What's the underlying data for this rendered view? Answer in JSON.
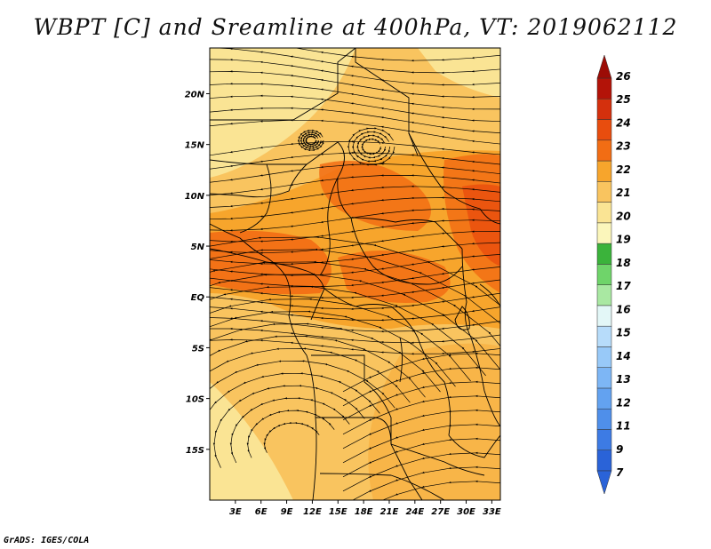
{
  "title": "WBPT [C] and Sreamline at 400hPa, VT: 2019062112",
  "credit": "GrADS: IGES/COLA",
  "map": {
    "lon_range": [
      0,
      34
    ],
    "lat_range": [
      -20,
      24.5
    ],
    "lon_ticks": [
      {
        "value": 3,
        "label": "3E"
      },
      {
        "value": 6,
        "label": "6E"
      },
      {
        "value": 9,
        "label": "9E"
      },
      {
        "value": 12,
        "label": "12E"
      },
      {
        "value": 15,
        "label": "15E"
      },
      {
        "value": 18,
        "label": "18E"
      },
      {
        "value": 21,
        "label": "21E"
      },
      {
        "value": 24,
        "label": "24E"
      },
      {
        "value": 27,
        "label": "27E"
      },
      {
        "value": 30,
        "label": "30E"
      },
      {
        "value": 33,
        "label": "33E"
      }
    ],
    "lat_ticks": [
      {
        "value": 20,
        "label": "20N"
      },
      {
        "value": 15,
        "label": "15N"
      },
      {
        "value": 10,
        "label": "10N"
      },
      {
        "value": 5,
        "label": "5N"
      },
      {
        "value": 0,
        "label": "EQ"
      },
      {
        "value": -5,
        "label": "5S"
      },
      {
        "value": -10,
        "label": "10S"
      },
      {
        "value": -15,
        "label": "15S"
      }
    ],
    "field": "wet-bulb potential temperature",
    "field_units": "C",
    "level": "400hPa",
    "dominant_range_c": [
      20,
      23
    ]
  },
  "colorbar": {
    "labels": [
      "7",
      "9",
      "11",
      "12",
      "13",
      "14",
      "15",
      "16",
      "17",
      "18",
      "19",
      "20",
      "21",
      "22",
      "23",
      "24",
      "25",
      "26"
    ],
    "colors": [
      "#2a63d8",
      "#3d7be4",
      "#4f8fea",
      "#63a2f0",
      "#7db6f5",
      "#98c9f8",
      "#b7dcfa",
      "#e3f7f7",
      "#a9e8a2",
      "#6fd46a",
      "#3bb33b",
      "#fbf6bb",
      "#fae494",
      "#f9c45f",
      "#f7a52c",
      "#f26d14",
      "#e84d0e",
      "#d4300d",
      "#b31308"
    ],
    "over_color": "#9c0c06",
    "under_color": "#2a63d8"
  }
}
